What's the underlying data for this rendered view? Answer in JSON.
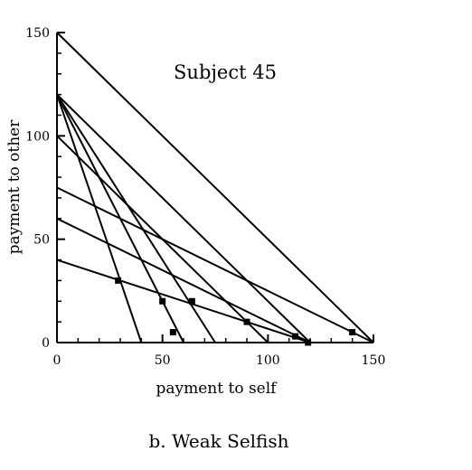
{
  "chart_data": {
    "type": "line",
    "title": "Subject 45",
    "xlabel": "payment to self",
    "ylabel": "payment to other",
    "xlim": [
      0,
      150
    ],
    "ylim": [
      0,
      150
    ],
    "xticks": [
      0,
      50,
      100,
      150
    ],
    "yticks": [
      0,
      50,
      100,
      150
    ],
    "xtick_labels": [
      "0",
      "50",
      "100",
      "150"
    ],
    "ytick_labels": [
      "0",
      "50",
      "100",
      "150"
    ],
    "minor_tick_step": 10,
    "grid": false,
    "lines": [
      {
        "x": [
          0,
          150
        ],
        "y": [
          150,
          0
        ]
      },
      {
        "x": [
          0,
          120
        ],
        "y": [
          120,
          0
        ]
      },
      {
        "x": [
          0,
          100
        ],
        "y": [
          100,
          0
        ]
      },
      {
        "x": [
          0,
          75
        ],
        "y": [
          120,
          0
        ]
      },
      {
        "x": [
          0,
          60
        ],
        "y": [
          120,
          0
        ]
      },
      {
        "x": [
          0,
          40
        ],
        "y": [
          120,
          0
        ]
      },
      {
        "x": [
          0,
          150
        ],
        "y": [
          75,
          0
        ]
      },
      {
        "x": [
          0,
          120
        ],
        "y": [
          60,
          0
        ]
      },
      {
        "x": [
          0,
          120
        ],
        "y": [
          40,
          0
        ]
      }
    ],
    "points": {
      "x": [
        29,
        50,
        64,
        90,
        113,
        119,
        55,
        140
      ],
      "y": [
        30,
        20,
        20,
        10,
        3,
        0,
        5,
        5
      ]
    }
  },
  "caption": "b. Weak Selfish"
}
